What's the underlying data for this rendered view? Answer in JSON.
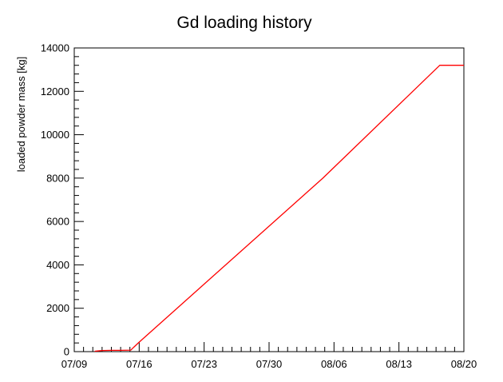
{
  "chart_data": {
    "type": "line",
    "title": "Gd loading history",
    "xlabel": "",
    "ylabel": "loaded powder mass [kg]",
    "x_tick_labels": [
      "07/09",
      "07/16",
      "07/23",
      "07/30",
      "08/06",
      "08/13",
      "08/20"
    ],
    "x_ticks_days": [
      0,
      7,
      14,
      21,
      28,
      35,
      42
    ],
    "xlim_days": [
      0,
      42
    ],
    "y_tick_labels": [
      "0",
      "2000",
      "4000",
      "6000",
      "8000",
      "10000",
      "12000",
      "14000"
    ],
    "y_ticks": [
      0,
      2000,
      4000,
      6000,
      8000,
      10000,
      12000,
      14000
    ],
    "ylim": [
      0,
      14000
    ],
    "grid": false,
    "series": [
      {
        "color": "#ff0000",
        "x_days": [
          2.2,
          2.5,
          3.0,
          4.0,
          5.0,
          6.1,
          6.4,
          6.9,
          26.8,
          39.4,
          41.6,
          42.0
        ],
        "values": [
          20,
          30,
          50,
          60,
          60,
          70,
          200,
          400,
          8000,
          13200,
          13200,
          13200
        ]
      }
    ]
  }
}
